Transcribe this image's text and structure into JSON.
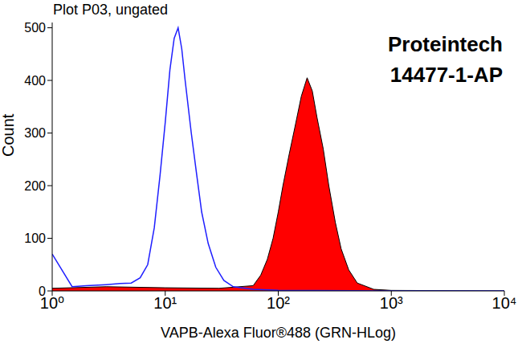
{
  "chart_data": {
    "type": "histogram",
    "title": "Plot P03, ungated",
    "annotations": [
      "Proteintech",
      "14477-1-AP"
    ],
    "x_label": "VAPB-Alexa Fluor®488 (GRN-HLog)",
    "y_label": "Count",
    "log": "x",
    "xlim": [
      1,
      10000
    ],
    "xticks": [
      {
        "value": 1,
        "label": "10⁰"
      },
      {
        "value": 10,
        "label": "10¹"
      },
      {
        "value": 100,
        "label": "10²"
      },
      {
        "value": 1000,
        "label": "10³"
      },
      {
        "value": 10000,
        "label": "10⁴"
      }
    ],
    "ylim": [
      0,
      510
    ],
    "yticks": [
      0,
      100,
      200,
      300,
      400,
      500
    ],
    "series": [
      {
        "type": "line",
        "color": "#1f1fff",
        "x": [
          1,
          1.5,
          2,
          3,
          4,
          5,
          6,
          7,
          8,
          9,
          10,
          11,
          12,
          13,
          14,
          15,
          17,
          19,
          21,
          24,
          28,
          33,
          40,
          60,
          100,
          1000,
          10000
        ],
        "values": [
          70,
          8,
          10,
          12,
          14,
          15,
          25,
          50,
          120,
          220,
          320,
          420,
          480,
          500,
          460,
          400,
          300,
          220,
          150,
          90,
          45,
          20,
          8,
          3,
          1,
          0,
          0
        ]
      },
      {
        "type": "area",
        "color": "#ff0000",
        "x": [
          1,
          3,
          10,
          30,
          60,
          70,
          80,
          90,
          100,
          110,
          125,
          140,
          160,
          180,
          200,
          220,
          250,
          280,
          320,
          360,
          420,
          500,
          700,
          1000,
          10000
        ],
        "values": [
          5,
          8,
          6,
          5,
          10,
          30,
          60,
          100,
          150,
          200,
          260,
          310,
          370,
          405,
          380,
          330,
          270,
          200,
          130,
          80,
          40,
          15,
          3,
          1,
          0
        ]
      }
    ]
  }
}
